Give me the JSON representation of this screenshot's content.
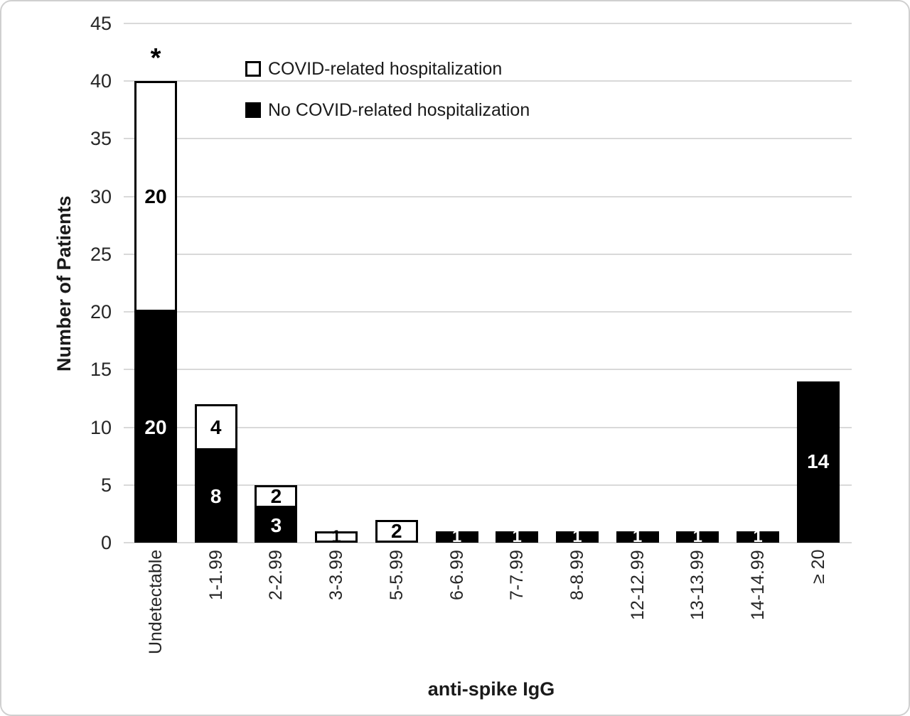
{
  "legend": {
    "items": [
      {
        "label": "COVID-related hospitalization",
        "fill": "#ffffff"
      },
      {
        "label": "No COVID-related hospitalization",
        "fill": "#000000"
      }
    ]
  },
  "chart_data": {
    "type": "bar",
    "stacked": true,
    "categories": [
      "Undetectable",
      "1-1.99",
      "2-2.99",
      "3-3.99",
      "5-5.99",
      "6-6.99",
      "7-7.99",
      "8-8.99",
      "12-12.99",
      "13-13.99",
      "14-14.99",
      "≥ 20"
    ],
    "series": [
      {
        "name": "No COVID-related hospitalization",
        "fill": "#000000",
        "label_color": "#ffffff",
        "values": [
          20,
          8,
          3,
          0,
          0,
          1,
          1,
          1,
          1,
          1,
          1,
          14
        ]
      },
      {
        "name": "COVID-related hospitalization",
        "fill": "#ffffff",
        "label_color": "#000000",
        "values": [
          20,
          4,
          2,
          1,
          2,
          0,
          0,
          0,
          0,
          0,
          0,
          0
        ]
      }
    ],
    "xlabel": "anti-spike IgG",
    "ylabel": "Number of Patients",
    "ylim": [
      0,
      45
    ],
    "ytick_step": 5,
    "grid": true,
    "legend_position": "top-left-inside",
    "annotations": [
      {
        "text": "*",
        "category": "Undetectable",
        "category_index": 0
      }
    ],
    "colors": {
      "grid": "#d9d9d9",
      "bar_border": "#000000",
      "axis_text": "#262626",
      "series_black": "#000000",
      "series_white": "#ffffff"
    }
  }
}
